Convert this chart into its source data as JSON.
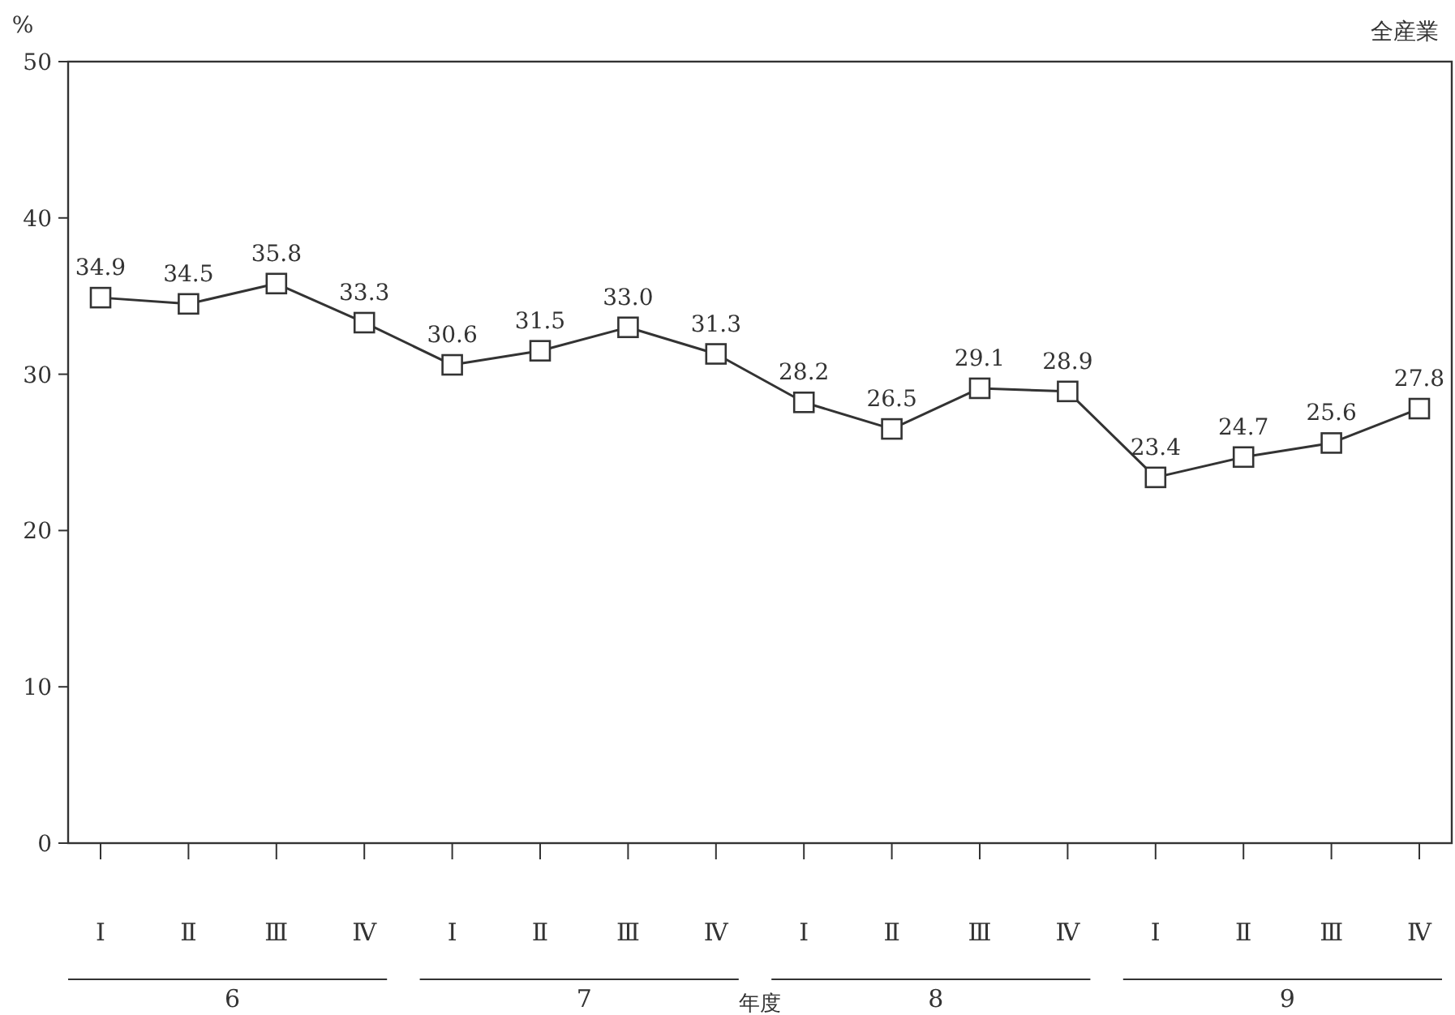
{
  "chart_data": {
    "type": "line",
    "title": "全産業",
    "ylabel": "%",
    "xlabel": "年度",
    "categories": [
      "Ⅰ",
      "Ⅱ",
      "Ⅲ",
      "Ⅳ",
      "Ⅰ",
      "Ⅱ",
      "Ⅲ",
      "Ⅳ",
      "Ⅰ",
      "Ⅱ",
      "Ⅲ",
      "Ⅳ",
      "Ⅰ",
      "Ⅱ",
      "Ⅲ",
      "Ⅳ"
    ],
    "series": [
      {
        "color": "#333333",
        "values": [
          34.9,
          34.5,
          35.8,
          33.3,
          30.6,
          31.5,
          33.0,
          31.3,
          28.2,
          26.5,
          29.1,
          28.9,
          23.4,
          24.7,
          25.6,
          27.8
        ]
      }
    ],
    "ylim": [
      0,
      50
    ],
    "yticks": [
      0,
      10,
      20,
      30,
      40,
      50
    ],
    "annotations": [
      "6",
      "7",
      "8",
      "9"
    ],
    "value_labels": [
      "34.9",
      "34.5",
      "35.8",
      "33.3",
      "30.6",
      "31.5",
      "33.0",
      "31.3",
      "28.2",
      "26.5",
      "29.1",
      "28.9",
      "23.4",
      "24.7",
      "25.6",
      "27.8"
    ],
    "marker": "square",
    "line_style": "solid",
    "grid": false
  }
}
